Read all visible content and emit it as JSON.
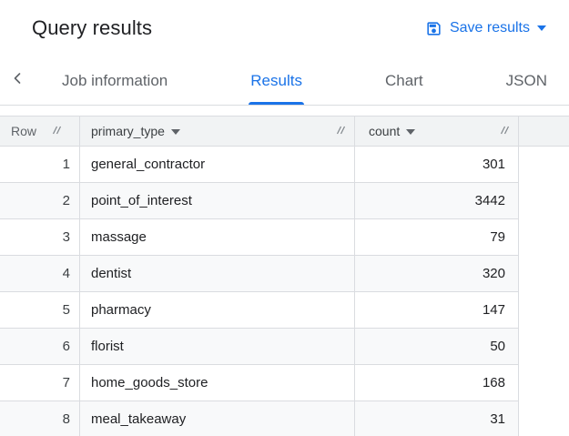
{
  "header": {
    "title": "Query results",
    "save_button": {
      "label": "Save results"
    }
  },
  "tabs": {
    "items": [
      {
        "label": "Job information",
        "active": false
      },
      {
        "label": "Results",
        "active": true
      },
      {
        "label": "Chart",
        "active": false
      },
      {
        "label": "JSON",
        "active": false
      }
    ]
  },
  "table": {
    "columns": [
      {
        "label": "Row",
        "has_menu": false
      },
      {
        "label": "primary_type",
        "has_menu": true
      },
      {
        "label": "count",
        "has_menu": true
      }
    ],
    "rows": [
      {
        "row": "1",
        "primary_type": "general_contractor",
        "count": "301"
      },
      {
        "row": "2",
        "primary_type": "point_of_interest",
        "count": "3442"
      },
      {
        "row": "3",
        "primary_type": "massage",
        "count": "79"
      },
      {
        "row": "4",
        "primary_type": "dentist",
        "count": "320"
      },
      {
        "row": "5",
        "primary_type": "pharmacy",
        "count": "147"
      },
      {
        "row": "6",
        "primary_type": "florist",
        "count": "50"
      },
      {
        "row": "7",
        "primary_type": "home_goods_store",
        "count": "168"
      },
      {
        "row": "8",
        "primary_type": "meal_takeaway",
        "count": "31"
      }
    ]
  },
  "icons": {
    "save": "save-icon",
    "dropdown": "caret-down-icon",
    "scroll_back": "chevron-left-icon",
    "column_resize": "column-resize-handle-icon",
    "column_menu": "caret-down-icon"
  },
  "colors": {
    "accent": "#1a73e8",
    "tab_inactive": "#5f6368",
    "header_bg": "#f1f3f4",
    "border": "#dadce0",
    "alt_row_bg": "#f8f9fa",
    "text": "#202124"
  }
}
